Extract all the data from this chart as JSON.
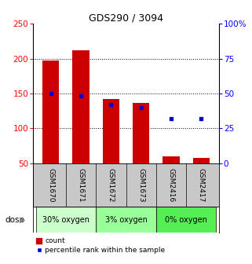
{
  "title": "GDS290 / 3094",
  "categories": [
    "GSM1670",
    "GSM1671",
    "GSM1672",
    "GSM1673",
    "GSM2416",
    "GSM2417"
  ],
  "bar_bottom": 50,
  "bar_tops": [
    197,
    212,
    142,
    136,
    60,
    57
  ],
  "percentile_values": [
    50,
    48,
    42,
    40,
    32,
    32
  ],
  "ylim_left": [
    50,
    250
  ],
  "ylim_right": [
    0,
    100
  ],
  "yticks_left": [
    50,
    100,
    150,
    200,
    250
  ],
  "yticks_right": [
    0,
    25,
    50,
    75,
    100
  ],
  "ytick_labels_right": [
    "0",
    "25",
    "50",
    "75",
    "100%"
  ],
  "bar_color": "#cc0000",
  "percentile_color": "#0000cc",
  "groups": [
    {
      "label": "30% oxygen",
      "indices": [
        0,
        1
      ],
      "color": "#ccffcc"
    },
    {
      "label": "3% oxygen",
      "indices": [
        2,
        3
      ],
      "color": "#99ff99"
    },
    {
      "label": "0% oxygen",
      "indices": [
        4,
        5
      ],
      "color": "#55ee55"
    }
  ],
  "dose_label": "dose",
  "legend_count_label": "count",
  "legend_percentile_label": "percentile rank within the sample",
  "background_color": "#ffffff",
  "label_area_color": "#c8c8c8",
  "bar_width": 0.55,
  "grid_yticks": [
    100,
    150,
    200
  ]
}
